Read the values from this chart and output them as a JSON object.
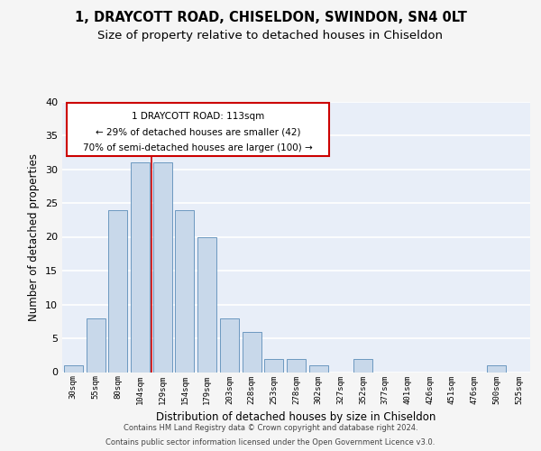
{
  "title1": "1, DRAYCOTT ROAD, CHISELDON, SWINDON, SN4 0LT",
  "title2": "Size of property relative to detached houses in Chiseldon",
  "xlabel": "Distribution of detached houses by size in Chiseldon",
  "ylabel": "Number of detached properties",
  "categories": [
    "30sqm",
    "55sqm",
    "80sqm",
    "104sqm",
    "129sqm",
    "154sqm",
    "179sqm",
    "203sqm",
    "228sqm",
    "253sqm",
    "278sqm",
    "302sqm",
    "327sqm",
    "352sqm",
    "377sqm",
    "401sqm",
    "426sqm",
    "451sqm",
    "476sqm",
    "500sqm",
    "525sqm"
  ],
  "values": [
    1,
    8,
    24,
    31,
    31,
    24,
    20,
    8,
    6,
    2,
    2,
    1,
    0,
    2,
    0,
    0,
    0,
    0,
    0,
    1,
    0
  ],
  "bar_color": "#c8d8ea",
  "bar_edge_color": "#5b8db8",
  "property_line_x": 3.5,
  "annotation_line1": "1 DRAYCOTT ROAD: 113sqm",
  "annotation_line2": "← 29% of detached houses are smaller (42)",
  "annotation_line3": "70% of semi-detached houses are larger (100) →",
  "annotation_box_color": "#ffffff",
  "annotation_box_edge": "#cc0000",
  "footer1": "Contains HM Land Registry data © Crown copyright and database right 2024.",
  "footer2": "Contains public sector information licensed under the Open Government Licence v3.0.",
  "ylim": [
    0,
    40
  ],
  "background_color": "#e8eef8",
  "grid_color": "#ffffff",
  "fig_bg": "#f5f5f5"
}
